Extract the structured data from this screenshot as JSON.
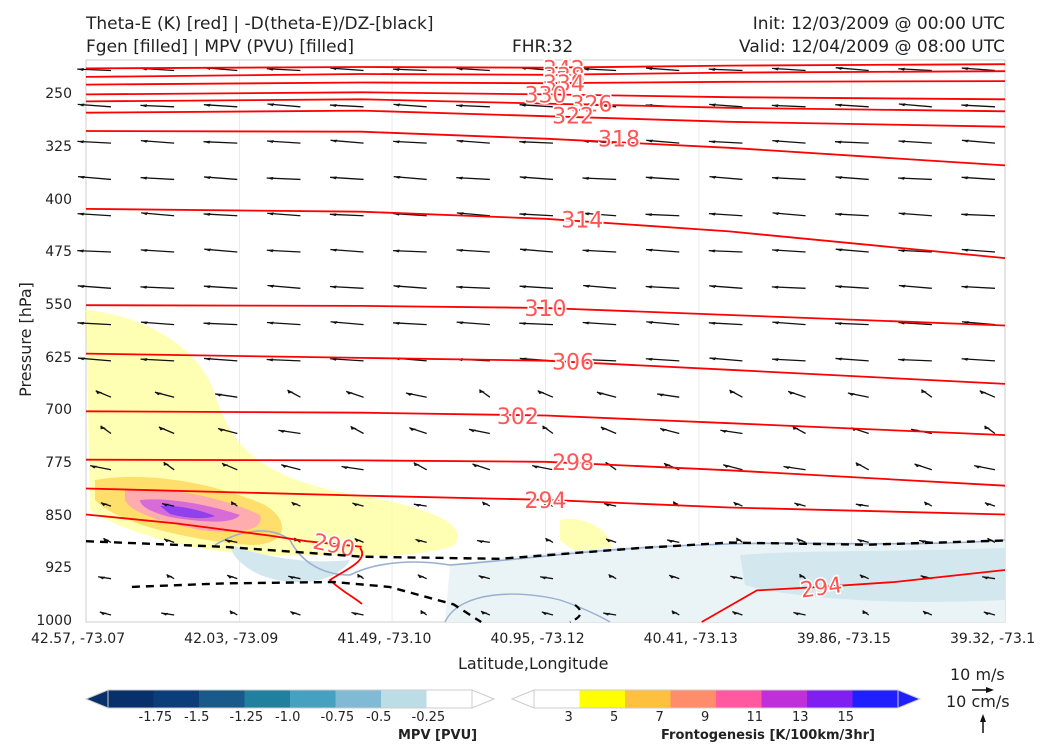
{
  "header": {
    "line1_left": "Theta-E (K) [red] | -D(theta-E)/DZ-[black]",
    "line2_left": "Fgen [filled] | MPV (PVU) [filled]",
    "fhr": "FHR:32",
    "init": "Init: 12/03/2009 @ 00:00 UTC",
    "valid": "Valid: 12/04/2009 @ 08:00 UTC"
  },
  "colors": {
    "theta_e": "#ff0000",
    "theta_e_label": "#ff5555",
    "stability": "#000000",
    "mpv_zero": "#9aaed0",
    "grid": "#dddddd"
  },
  "chart_data": {
    "type": "cross-section contour",
    "ylabel": "Pressure [hPa]",
    "xlabel": "Latitude,Longitude",
    "y_scale": "pressure (inverted)",
    "ylim": [
      1000,
      200
    ],
    "y_ticks": [
      250,
      325,
      400,
      475,
      550,
      625,
      700,
      775,
      850,
      925,
      1000
    ],
    "x_ticks": [
      "42.57, -73.07",
      "42.03, -73.09",
      "41.49, -73.10",
      "40.95, -73.12",
      "40.41, -73.13",
      "39.86, -73.15",
      "39.32, -73.1"
    ],
    "theta_e_contours": [
      {
        "level": 342,
        "label": "342",
        "points": [
          [
            0,
            212
          ],
          [
            0.3,
            210
          ],
          [
            0.5,
            211
          ],
          [
            0.7,
            208
          ],
          [
            1,
            206
          ]
        ]
      },
      {
        "level": 338,
        "label": "338",
        "points": [
          [
            0,
            224
          ],
          [
            0.3,
            220
          ],
          [
            0.5,
            221
          ],
          [
            0.7,
            218
          ],
          [
            1,
            216
          ]
        ]
      },
      {
        "level": 334,
        "label": "334",
        "points": [
          [
            0,
            235
          ],
          [
            0.3,
            232
          ],
          [
            0.5,
            233
          ],
          [
            0.7,
            231
          ],
          [
            1,
            230
          ]
        ]
      },
      {
        "level": 330,
        "label": "330",
        "points": [
          [
            0,
            249
          ],
          [
            0.3,
            246
          ],
          [
            0.5,
            249
          ],
          [
            0.7,
            253
          ],
          [
            1,
            256
          ]
        ]
      },
      {
        "level": 326,
        "label": "326",
        "points": [
          [
            0,
            259
          ],
          [
            0.3,
            256
          ],
          [
            0.5,
            262
          ],
          [
            0.7,
            268
          ],
          [
            1,
            273
          ]
        ]
      },
      {
        "level": 322,
        "label": "322",
        "points": [
          [
            0,
            275
          ],
          [
            0.3,
            272
          ],
          [
            0.5,
            280
          ],
          [
            0.7,
            288
          ],
          [
            1,
            295
          ]
        ]
      },
      {
        "level": 318,
        "label": "318",
        "points": [
          [
            0,
            301
          ],
          [
            0.3,
            302
          ],
          [
            0.5,
            312
          ],
          [
            0.7,
            325
          ],
          [
            1,
            350
          ]
        ]
      },
      {
        "level": 314,
        "label": "314",
        "points": [
          [
            0,
            412
          ],
          [
            0.3,
            416
          ],
          [
            0.5,
            426
          ],
          [
            0.7,
            444
          ],
          [
            1,
            482
          ]
        ]
      },
      {
        "level": 310,
        "label": "310",
        "points": [
          [
            0,
            549
          ],
          [
            0.3,
            550
          ],
          [
            0.5,
            553
          ],
          [
            0.7,
            563
          ],
          [
            1,
            578
          ]
        ]
      },
      {
        "level": 306,
        "label": "306",
        "points": [
          [
            0,
            618
          ],
          [
            0.3,
            624
          ],
          [
            0.5,
            628
          ],
          [
            0.7,
            641
          ],
          [
            1,
            661
          ]
        ]
      },
      {
        "level": 302,
        "label": "302",
        "points": [
          [
            0,
            700
          ],
          [
            0.3,
            702
          ],
          [
            0.5,
            706
          ],
          [
            0.7,
            717
          ],
          [
            1,
            734
          ]
        ]
      },
      {
        "level": 298,
        "label": "298",
        "points": [
          [
            0,
            769
          ],
          [
            0.3,
            770
          ],
          [
            0.5,
            772
          ],
          [
            0.7,
            784
          ],
          [
            1,
            806
          ]
        ]
      },
      {
        "level": 294,
        "label": "294",
        "points": [
          [
            0,
            810
          ],
          [
            0.3,
            820
          ],
          [
            0.5,
            826
          ],
          [
            0.7,
            837
          ],
          [
            1,
            847
          ]
        ]
      },
      {
        "level": 290,
        "label": "290",
        "points": [
          [
            0,
            847
          ],
          [
            0.1,
            860
          ],
          [
            0.2,
            877
          ],
          [
            0.24,
            885
          ],
          [
            0.3,
            893
          ]
        ]
      },
      {
        "level": 294,
        "label": "294",
        "points": [
          [
            0.67,
            1000
          ],
          [
            0.73,
            955
          ],
          [
            0.8,
            950
          ],
          [
            0.88,
            943
          ],
          [
            1,
            926
          ]
        ]
      }
    ],
    "stability_contours": [
      {
        "points": [
          [
            0,
            885
          ],
          [
            0.15,
            893
          ],
          [
            0.3,
            907
          ],
          [
            0.45,
            910
          ],
          [
            0.6,
            895
          ],
          [
            0.7,
            887
          ],
          [
            0.85,
            890
          ],
          [
            1,
            884
          ]
        ]
      },
      {
        "points": [
          [
            0.05,
            950
          ],
          [
            0.15,
            945
          ],
          [
            0.27,
            943
          ],
          [
            0.33,
            950
          ],
          [
            0.4,
            975
          ],
          [
            0.43,
            1000
          ]
        ]
      }
    ],
    "mpv_colorbar": {
      "title": "MPV [PVU]",
      "ticks": [
        "-1.75",
        "-1.5",
        "-1.25",
        "-1.0",
        "-0.75",
        "-0.5",
        "-0.25"
      ],
      "colors": [
        "#08306b",
        "#0b3d7a",
        "#1a5a8a",
        "#20809e",
        "#46a0c0",
        "#80bad4",
        "#bddde6",
        "#ffffff"
      ]
    },
    "fgen_colorbar": {
      "title": "Frontogenesis [K/100km/3hr]",
      "ticks": [
        "3",
        "5",
        "7",
        "9",
        "11",
        "13",
        "15"
      ],
      "colors": [
        "#ffffff",
        "#ffff00",
        "#ffc040",
        "#ff8c6b",
        "#ff5aa0",
        "#c030d8",
        "#8020f0",
        "#2020ff"
      ]
    },
    "vector_reference": {
      "horizontal": "10 m/s",
      "vertical": "10 cm/s"
    }
  }
}
